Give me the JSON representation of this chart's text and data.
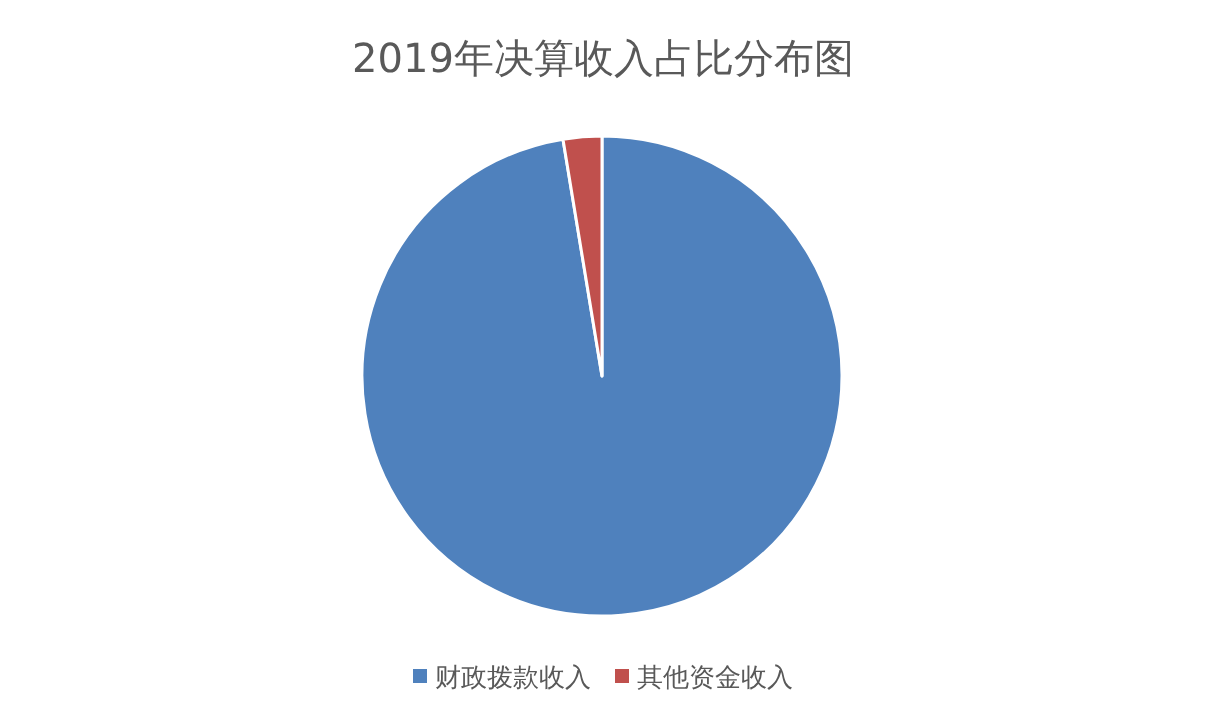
{
  "chart_data": {
    "type": "pie",
    "title": "2019年决算收入占比分布图",
    "categories": [
      "财政拨款收入",
      "其他资金收入"
    ],
    "values": [
      97.4,
      2.6
    ],
    "colors": [
      "#4f81bd",
      "#c0504d"
    ],
    "legend": "bottom"
  }
}
